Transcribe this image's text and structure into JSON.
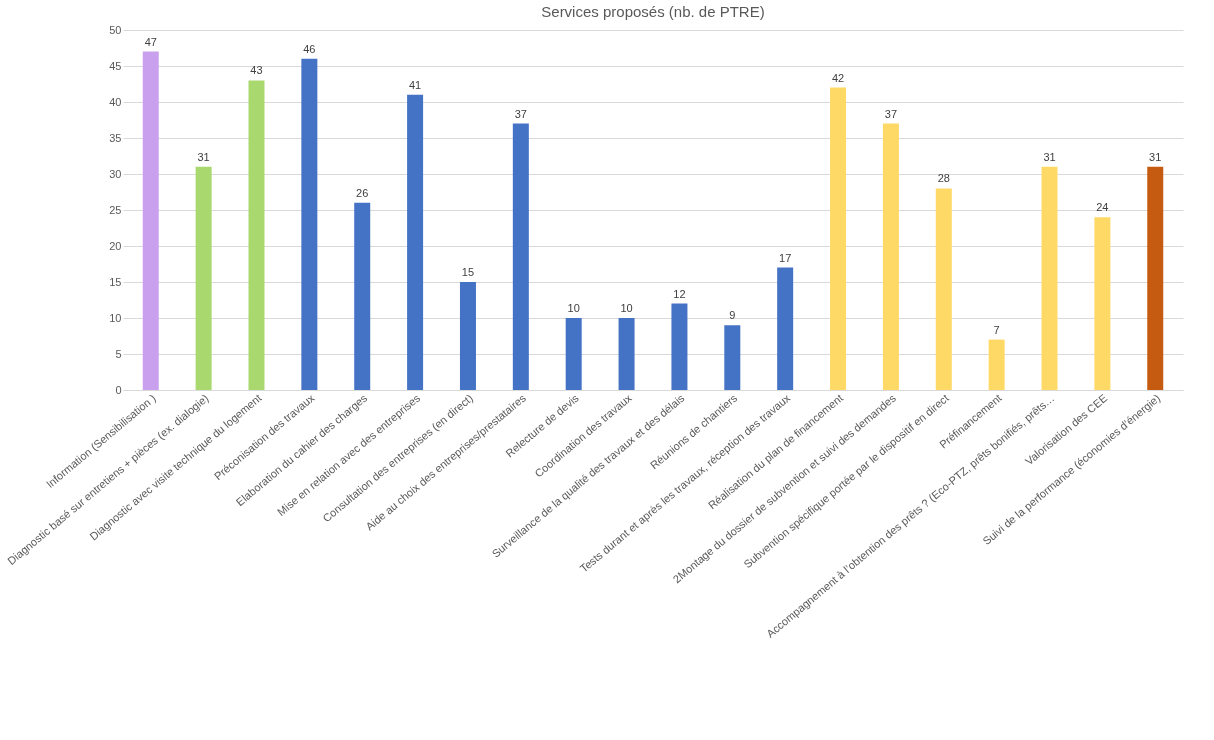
{
  "chart_data": {
    "type": "bar",
    "title": "Services proposés (nb. de PTRE)",
    "categories": [
      "Information (Sensibilisation )",
      "Diagnostic basé sur entretiens + pièces (ex. dialogie)",
      "Diagnostic avec visite technique du logement",
      "Préconisation des travaux",
      "Elaboration du cahier des charges",
      "Mise en relation avec des entreprises",
      "Consultation des entreprises (en direct)",
      "Aide au choix des entreprises/prestataires",
      "Relecture de devis",
      "Coordination des travaux",
      "Surveillance de la qualité des travaux et des délais",
      "Réunions de chantiers",
      "Tests durant et après les travaux, réception des travaux",
      "Réalisation du plan de financement",
      "2Montage du dossier de subvention et suivi des demandes",
      "Subvention spécifique portée par le dispositif en direct",
      "Préfinancement",
      "Accompagnement à l’obtention des prêts ? (Eco-PTZ, prêts bonifiés, prêts…",
      "Valorisation des CEE",
      "Suivi de la performance (économies d’énergie)"
    ],
    "values": [
      47,
      31,
      43,
      46,
      26,
      41,
      15,
      37,
      10,
      10,
      12,
      9,
      17,
      42,
      37,
      28,
      7,
      31,
      24,
      31
    ],
    "colors": [
      "#c9a0ee",
      "#a9d86e",
      "#a9d86e",
      "#4472c4",
      "#4472c4",
      "#4472c4",
      "#4472c4",
      "#4472c4",
      "#4472c4",
      "#4472c4",
      "#4472c4",
      "#4472c4",
      "#4472c4",
      "#ffd966",
      "#ffd966",
      "#ffd966",
      "#ffd966",
      "#ffd966",
      "#ffd966",
      "#c55a11"
    ],
    "ylim": [
      0,
      50
    ],
    "yticks": [
      0,
      5,
      10,
      15,
      20,
      25,
      30,
      35,
      40,
      45,
      50
    ],
    "grid": "y",
    "data_labels": true
  }
}
